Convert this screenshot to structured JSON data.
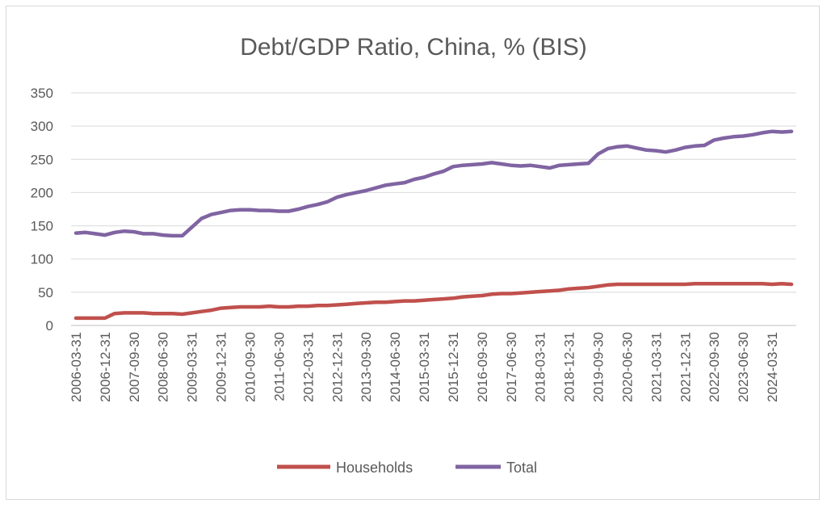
{
  "chart_data": {
    "type": "line",
    "title": "Debt/GDP Ratio, China, % (BIS)",
    "xlabel": "",
    "ylabel": "",
    "ylim": [
      0,
      350
    ],
    "yticks": [
      0,
      50,
      100,
      150,
      200,
      250,
      300,
      350
    ],
    "grid": true,
    "legend_position": "bottom",
    "x": [
      "2006-03-31",
      "2006-06-30",
      "2006-09-30",
      "2006-12-31",
      "2007-03-31",
      "2007-06-30",
      "2007-09-30",
      "2007-12-31",
      "2008-03-31",
      "2008-06-30",
      "2008-09-30",
      "2008-12-31",
      "2009-03-31",
      "2009-06-30",
      "2009-09-30",
      "2009-12-31",
      "2010-03-31",
      "2010-06-30",
      "2010-09-30",
      "2010-12-31",
      "2011-03-31",
      "2011-06-30",
      "2011-09-30",
      "2011-12-31",
      "2012-03-31",
      "2012-06-30",
      "2012-09-30",
      "2012-12-31",
      "2013-03-31",
      "2013-06-30",
      "2013-09-30",
      "2013-12-31",
      "2014-03-31",
      "2014-06-30",
      "2014-09-30",
      "2014-12-31",
      "2015-03-31",
      "2015-06-30",
      "2015-09-30",
      "2015-12-31",
      "2016-03-31",
      "2016-06-30",
      "2016-09-30",
      "2016-12-31",
      "2017-03-31",
      "2017-06-30",
      "2017-09-30",
      "2017-12-31",
      "2018-03-31",
      "2018-06-30",
      "2018-09-30",
      "2018-12-31",
      "2019-03-31",
      "2019-06-30",
      "2019-09-30",
      "2019-12-31",
      "2020-03-31",
      "2020-06-30",
      "2020-09-30",
      "2020-12-31",
      "2021-03-31",
      "2021-06-30",
      "2021-09-30",
      "2021-12-31",
      "2022-03-31",
      "2022-06-30",
      "2022-09-30",
      "2022-12-31",
      "2023-03-31",
      "2023-06-30",
      "2023-09-30",
      "2023-12-31",
      "2024-03-31",
      "2024-06-30",
      "2024-09-30"
    ],
    "series": [
      {
        "name": "Households",
        "color": "#c0504d",
        "values": [
          11,
          11,
          11,
          11,
          18,
          19,
          19,
          19,
          18,
          18,
          18,
          17,
          19,
          21,
          23,
          26,
          27,
          28,
          28,
          28,
          29,
          28,
          28,
          29,
          29,
          30,
          30,
          31,
          32,
          33,
          34,
          35,
          35,
          36,
          37,
          37,
          38,
          39,
          40,
          41,
          43,
          44,
          45,
          47,
          48,
          48,
          49,
          50,
          51,
          52,
          53,
          55,
          56,
          57,
          59,
          61,
          62,
          62,
          62,
          62,
          62,
          62,
          62,
          62,
          63,
          63,
          63,
          63,
          63,
          63,
          63,
          63,
          62,
          63,
          62
        ]
      },
      {
        "name": "Total",
        "color": "#8064a2",
        "values": [
          139,
          140,
          138,
          136,
          140,
          142,
          141,
          138,
          138,
          136,
          135,
          135,
          148,
          161,
          167,
          170,
          173,
          174,
          174,
          173,
          173,
          172,
          172,
          175,
          179,
          182,
          186,
          193,
          197,
          200,
          203,
          207,
          211,
          213,
          215,
          220,
          223,
          228,
          232,
          239,
          241,
          242,
          243,
          245,
          243,
          241,
          240,
          241,
          239,
          237,
          241,
          242,
          243,
          244,
          258,
          266,
          269,
          270,
          267,
          264,
          263,
          261,
          264,
          268,
          270,
          271,
          279,
          282,
          284,
          285,
          287,
          290,
          292,
          291,
          292
        ]
      }
    ],
    "xtick_labels": [
      "2006-03-31",
      "2006-12-31",
      "2007-09-30",
      "2008-06-30",
      "2009-03-31",
      "2009-12-31",
      "2010-09-30",
      "2011-06-30",
      "2012-03-31",
      "2012-12-31",
      "2013-09-30",
      "2014-06-30",
      "2015-03-31",
      "2015-12-31",
      "2016-09-30",
      "2017-06-30",
      "2018-03-31",
      "2018-12-31",
      "2019-09-30",
      "2020-06-30",
      "2021-03-31",
      "2021-12-31",
      "2022-09-30",
      "2023-06-30",
      "2024-03-31"
    ],
    "legend": [
      {
        "name": "Households",
        "color": "#c0504d"
      },
      {
        "name": "Total",
        "color": "#8064a2"
      }
    ]
  }
}
